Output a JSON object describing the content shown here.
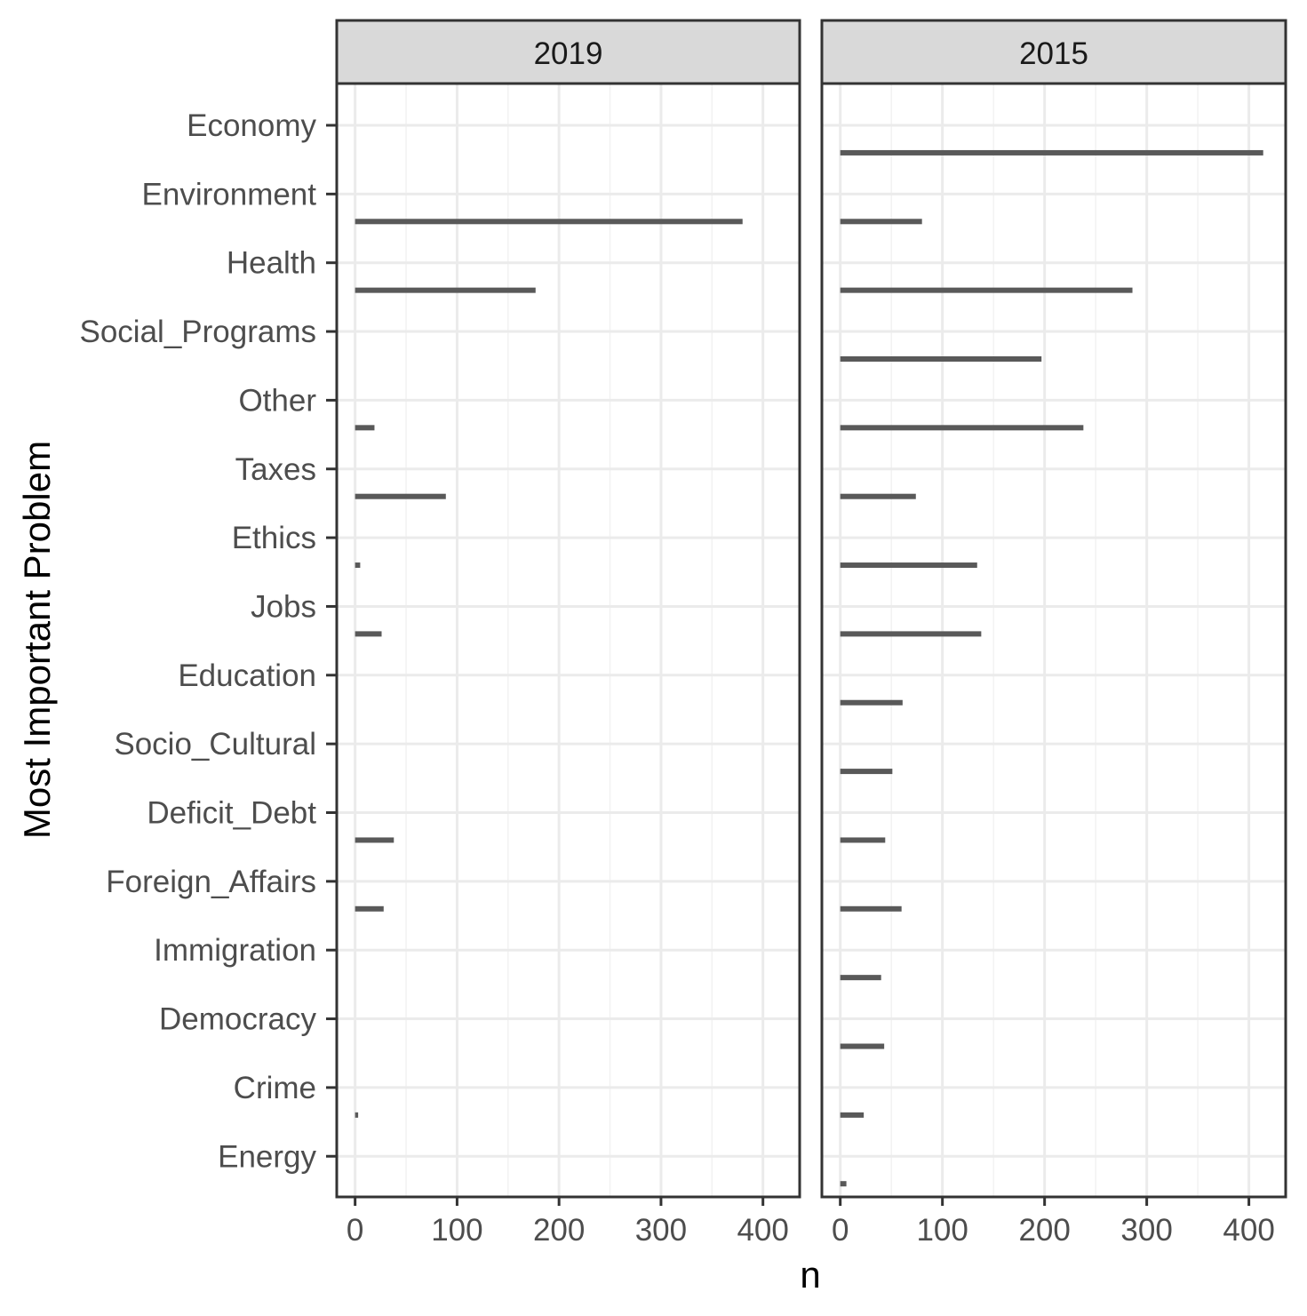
{
  "chart_data": {
    "type": "bar",
    "orientation": "horizontal",
    "facets": [
      "2019",
      "2015"
    ],
    "categories": [
      "Economy",
      "Environment",
      "Health",
      "Social_Programs",
      "Other",
      "Taxes",
      "Ethics",
      "Jobs",
      "Education",
      "Socio_Cultural",
      "Deficit_Debt",
      "Foreign_Affairs",
      "Immigration",
      "Democracy",
      "Crime",
      "Energy"
    ],
    "series": [
      {
        "facet": "2019",
        "values": [
          null,
          380,
          177,
          null,
          19,
          89,
          5,
          26,
          null,
          null,
          38,
          28,
          null,
          null,
          3,
          null
        ]
      },
      {
        "facet": "2015",
        "values": [
          414,
          80,
          286,
          197,
          238,
          74,
          134,
          138,
          61,
          51,
          44,
          60,
          40,
          43,
          23,
          6
        ]
      }
    ],
    "xlabel": "n",
    "ylabel": "Most Important Problem",
    "xticks": [
      0,
      100,
      200,
      300,
      400
    ],
    "xlim": [
      -18,
      436
    ],
    "grid": true,
    "bar_color": "#595959"
  }
}
